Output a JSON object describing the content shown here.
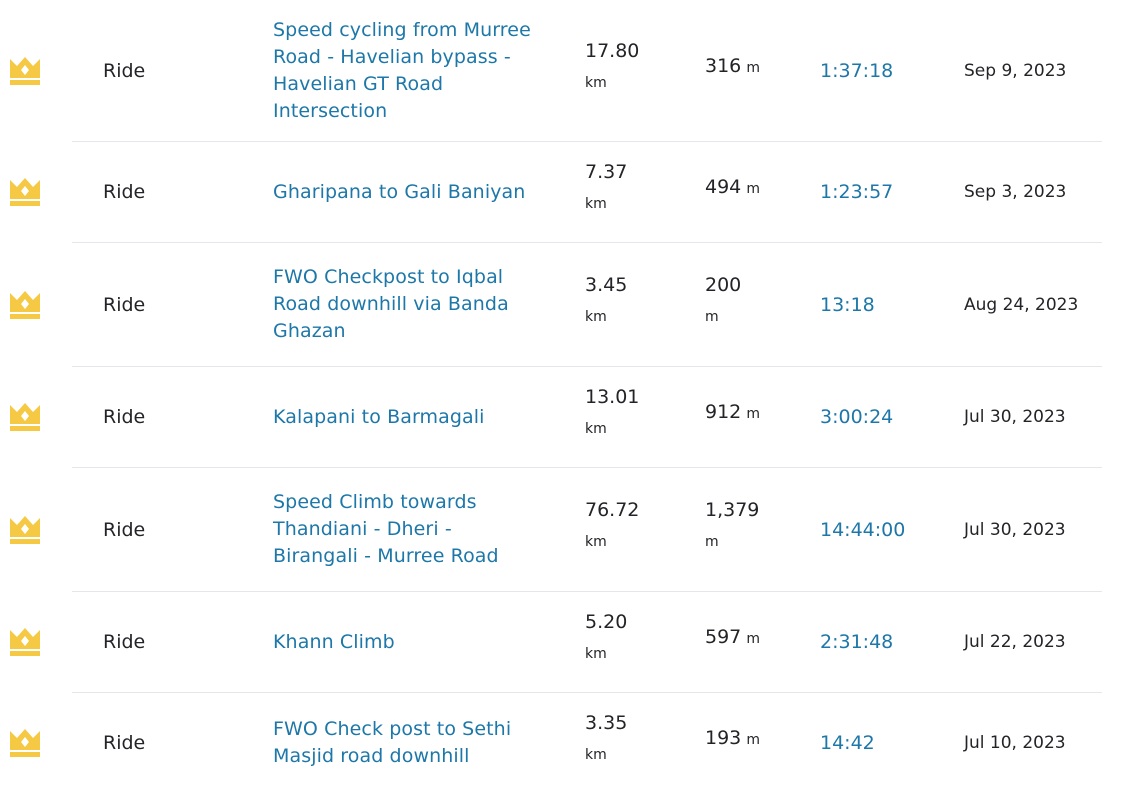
{
  "colors": {
    "link": "#1d77a8",
    "text": "#242428",
    "crown": "#f6c945",
    "crown_band": "#ffffff",
    "divider": "#e6e6ea"
  },
  "rows": [
    {
      "icon": "crown-icon",
      "sport": "Ride",
      "name": "Speed cycling from Murree Road - Havelian bypass - Havelian GT Road Intersection",
      "distance_value": "17.80",
      "distance_unit": "km",
      "elevation_value": "316",
      "elevation_unit": "m",
      "time": "1:37:18",
      "date": "Sep 9, 2023"
    },
    {
      "icon": "crown-icon",
      "sport": "Ride",
      "name": "Gharipana to Gali Baniyan",
      "distance_value": "7.37",
      "distance_unit": "km",
      "elevation_value": "494",
      "elevation_unit": "m",
      "time": "1:23:57",
      "date": "Sep 3, 2023"
    },
    {
      "icon": "crown-icon",
      "sport": "Ride",
      "name": "FWO Checkpost to Iqbal Road downhill via Banda Ghazan",
      "distance_value": "3.45",
      "distance_unit": "km",
      "elevation_value": "200",
      "elevation_unit": "m",
      "time": "13:18",
      "date": "Aug 24, 2023"
    },
    {
      "icon": "crown-icon",
      "sport": "Ride",
      "name": "Kalapani to Barmagali",
      "distance_value": "13.01",
      "distance_unit": "km",
      "elevation_value": "912",
      "elevation_unit": "m",
      "time": "3:00:24",
      "date": "Jul 30, 2023"
    },
    {
      "icon": "crown-icon",
      "sport": "Ride",
      "name": "Speed Climb towards Thandiani - Dheri - Birangali - Murree Road",
      "distance_value": "76.72",
      "distance_unit": "km",
      "elevation_value": "1,379",
      "elevation_unit": "m",
      "time": "14:44:00",
      "date": "Jul 30, 2023"
    },
    {
      "icon": "crown-icon",
      "sport": "Ride",
      "name": "Khann Climb",
      "distance_value": "5.20",
      "distance_unit": "km",
      "elevation_value": "597",
      "elevation_unit": "m",
      "time": "2:31:48",
      "date": "Jul 22, 2023"
    },
    {
      "icon": "crown-icon",
      "sport": "Ride",
      "name": "FWO Check post to Sethi Masjid road downhill",
      "distance_value": "3.35",
      "distance_unit": "km",
      "elevation_value": "193",
      "elevation_unit": "m",
      "time": "14:42",
      "date": "Jul 10, 2023"
    }
  ]
}
